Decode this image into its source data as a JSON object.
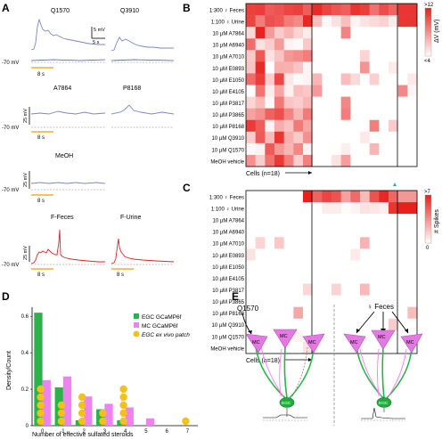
{
  "panels": {
    "A": {
      "letter": "A",
      "traces": [
        {
          "name": "Q1570",
          "color": "blue"
        },
        {
          "name": "Q3910",
          "color": "blue"
        },
        {
          "name": "A7864",
          "color": "blue"
        },
        {
          "name": "P8168",
          "color": "blue"
        },
        {
          "name": "MeOH",
          "color": "blue"
        },
        {
          "name": "F-Feces",
          "color": "red"
        },
        {
          "name": "F-Urine",
          "color": "red"
        }
      ],
      "labels": {
        "scale_mv": "5 mV",
        "scale_s": "5 s",
        "rest": "-70 mV",
        "scale_25": "25 mV",
        "stim": "8 s"
      }
    },
    "B": {
      "letter": "B",
      "rows": [
        "1:300 ♀ Feces",
        "1:100 ♀ Urine",
        "10 µM A7864",
        "10 µM A6940",
        "10 µM A7010",
        "10 µM E0893",
        "10 µM E1050",
        "10 µM E4105",
        "10 µM P3817",
        "10 µM P3865",
        "10 µM P8168",
        "10 µM Q3910",
        "10 µM Q1570",
        "MeOH vehicle"
      ],
      "xlabel": "Cells (n=18)",
      "colorbar": {
        "top": ">12",
        "bottom": "<4",
        "label": "ΔV (mV)"
      }
    },
    "C": {
      "letter": "C",
      "rows": [
        "1:300 ♀ Feces",
        "1:100 ♀ Urine",
        "10 µM A7864",
        "10 µM A6940",
        "10 µM A7010",
        "10 µM E0893",
        "10 µM E1050",
        "10 µM E4105",
        "10 µM P3817",
        "10 µM P3865",
        "10 µM P8168",
        "10 µM Q3910",
        "10 µM Q1570",
        "MeOH vehicle"
      ],
      "xlabel": "Cells (n=18)",
      "colorbar": {
        "top": ">7",
        "bottom": "0",
        "label": "# Spikes"
      }
    },
    "D": {
      "letter": "D",
      "legend": [
        {
          "label": "EGC GCaMP6f",
          "color": "#2bb34b"
        },
        {
          "label": "MC GCaMP6f",
          "color": "#ee82ee"
        },
        {
          "label": "EGC ex vivo patch",
          "color": "#f2c21a"
        }
      ]
    },
    "E": {
      "letter": "E",
      "left_stim": "Q1570",
      "right_stim": "♀ Feces",
      "mc": "MC",
      "egc": "EGC"
    }
  },
  "chart_data": {
    "type": "bar",
    "xlabel": "Number of effective sulfated steroids",
    "ylabel": "Density/Count",
    "ylim": [
      0,
      0.65
    ],
    "yticks": [
      0,
      0.2,
      0.4,
      0.6
    ],
    "categories": [
      "0",
      "1",
      "2",
      "3",
      "4",
      "5",
      "6",
      "7"
    ],
    "series": [
      {
        "name": "EGC GCaMP6f",
        "color": "#2bb34b",
        "values": [
          0.62,
          0.21,
          0.03,
          0.09,
          0.03,
          0.0,
          0.0,
          0.0
        ]
      },
      {
        "name": "MC GCaMP6f",
        "color": "#ee82ee",
        "values": [
          0.25,
          0.27,
          0.16,
          0.12,
          0.1,
          0.04,
          0.0,
          0.0
        ]
      }
    ],
    "dots": {
      "name": "EGC ex vivo patch",
      "color": "#f2c21a",
      "counts": [
        5,
        3,
        4,
        2,
        5,
        0,
        0,
        1
      ]
    },
    "legend_position": "top-right"
  }
}
